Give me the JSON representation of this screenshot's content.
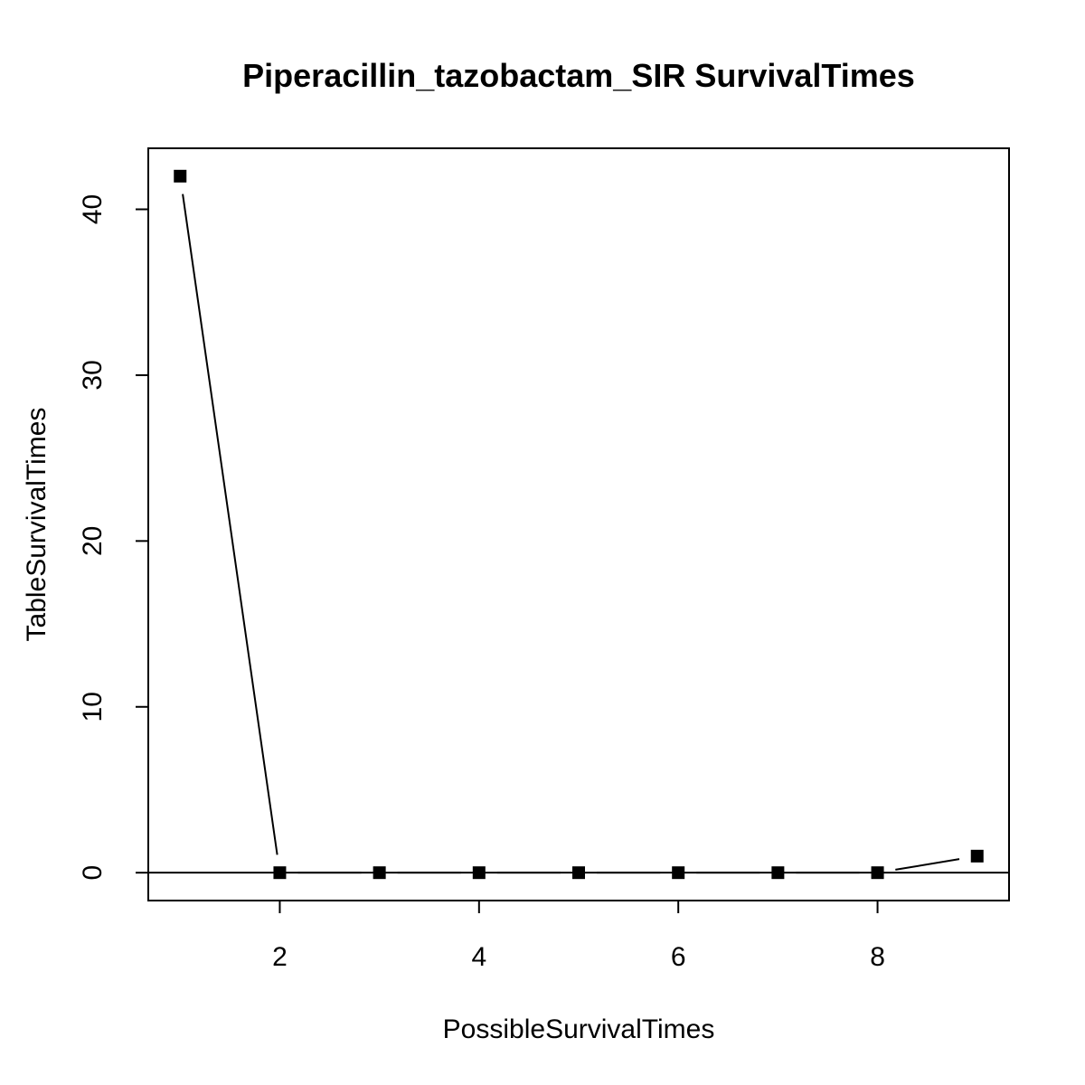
{
  "chart_data": {
    "type": "line",
    "title": "Piperacillin_tazobactam_SIR SurvivalTimes",
    "xlabel": "PossibleSurvivalTimes",
    "ylabel": "TableSurvivalTimes",
    "x": [
      1,
      2,
      3,
      4,
      5,
      6,
      7,
      8,
      9
    ],
    "y": [
      42,
      0,
      0,
      0,
      0,
      0,
      0,
      0,
      1
    ],
    "xlim": [
      0.68,
      9.32
    ],
    "ylim": [
      -1.68,
      43.68
    ],
    "xticks": [
      2,
      4,
      6,
      8
    ],
    "yticks": [
      0,
      10,
      20,
      30,
      40
    ],
    "hline": 0,
    "marker": "filled-square",
    "line_style": "overplotted-both",
    "grid": false,
    "colors": {
      "points": "#000000",
      "line": "#000000",
      "frame": "#000000"
    }
  }
}
